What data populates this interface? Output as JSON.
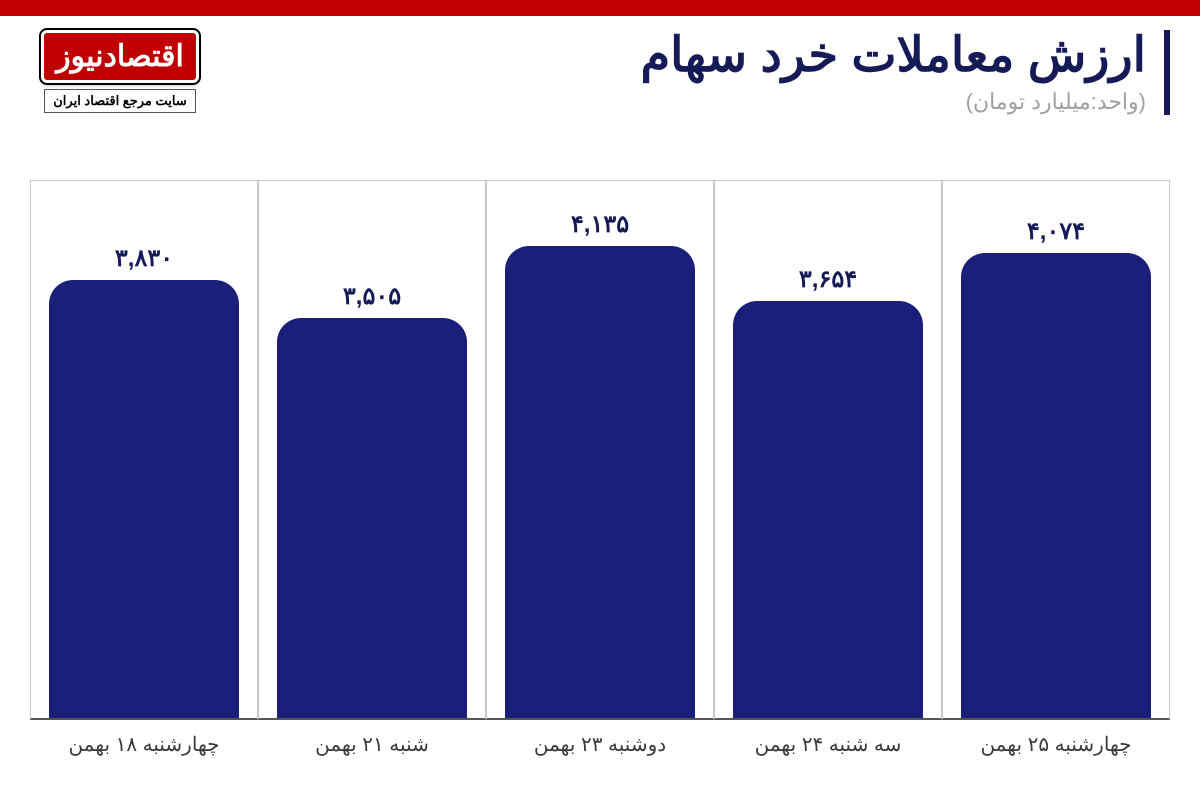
{
  "layout": {
    "top_bar_color": "#c00000",
    "background_color": "#ffffff",
    "grid_color": "#c8c8c8"
  },
  "header": {
    "title": "ارزش معاملات خرد سهام",
    "subtitle": "(واحد:میلیارد تومان)",
    "title_color": "#151b56",
    "subtitle_color": "#a0a0a0",
    "title_fontsize": 48,
    "subtitle_fontsize": 22,
    "accent_bar_color": "#151b56"
  },
  "logo": {
    "text": "اقتصادنیوز",
    "tagline": "سایت مرجع اقتصاد ایران",
    "badge_bg": "#c00000",
    "badge_text_color": "#ffffff",
    "tagline_bg": "#ffffff",
    "tagline_color": "#000000"
  },
  "chart": {
    "type": "bar",
    "bar_color": "#1a1f7a",
    "value_color": "#151b56",
    "label_color": "#3a3a3a",
    "value_fontsize": 24,
    "label_fontsize": 20,
    "bar_border_radius_top": 24,
    "y_max": 4700,
    "bars": [
      {
        "label": "چهارشنبه ۱۸ بهمن",
        "value": 3830,
        "value_label": "۳,۸۳۰"
      },
      {
        "label": "شنبه ۲۱ بهمن",
        "value": 3505,
        "value_label": "۳,۵۰۵"
      },
      {
        "label": "دوشنبه ۲۳ بهمن",
        "value": 4135,
        "value_label": "۴,۱۳۵"
      },
      {
        "label": "سه شنبه ۲۴ بهمن",
        "value": 3654,
        "value_label": "۳,۶۵۴"
      },
      {
        "label": "چهارشنبه ۲۵ بهمن",
        "value": 4074,
        "value_label": "۴,۰۷۴"
      }
    ]
  }
}
